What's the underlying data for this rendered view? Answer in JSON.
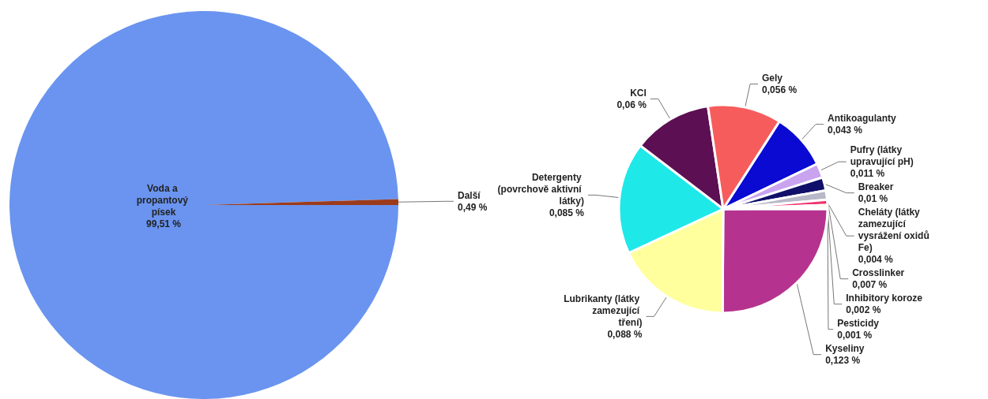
{
  "chart_data": [
    {
      "type": "pie",
      "categories": [
        "Voda a propantový písek",
        "Další"
      ],
      "values": [
        99.51,
        0.49
      ],
      "value_labels": [
        "99,51 %",
        "0,49 %"
      ],
      "colors": [
        "#6a94ef",
        "#9c3b1c"
      ]
    },
    {
      "type": "pie",
      "categories": [
        "Kyseliny",
        "Lubrikanty (látky zamezující tření)",
        "Detergenty (povrchově aktivní látky)",
        "KCl",
        "Gely",
        "Antikoagulanty",
        "Pufry (látky upravující pH)",
        "Breaker",
        "Crosslinker",
        "Cheláty (látky zamezující vysrážení oxidů Fe)",
        "Inhibitory koroze",
        "Pesticidy"
      ],
      "values": [
        0.123,
        0.088,
        0.085,
        0.06,
        0.056,
        0.043,
        0.011,
        0.01,
        0.007,
        0.004,
        0.002,
        0.001
      ],
      "value_labels": [
        "0,123 %",
        "0,088 %",
        "0,085 %",
        "0,06 %",
        "0,056 %",
        "0,043 %",
        "0,011 %",
        "0,01 %",
        "0,007 %",
        "0,004 %",
        "0,002 %",
        "0,001 %"
      ],
      "colors": [
        "#b5338f",
        "#ffff9e",
        "#1ee8e8",
        "#5c0f52",
        "#f75c5c",
        "#0a0ad2",
        "#c9a3ef",
        "#10106a",
        "#b8b8c8",
        "#f0336e",
        "#e8e860",
        "#7a3a12"
      ]
    }
  ]
}
